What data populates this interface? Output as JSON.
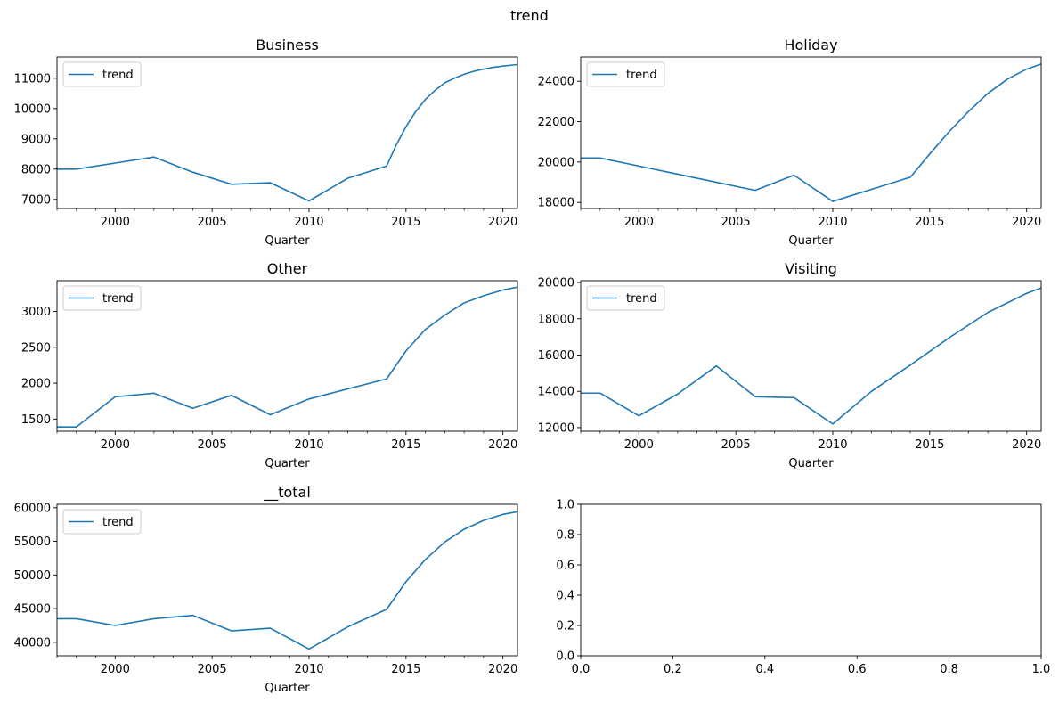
{
  "figure": {
    "suptitle": "trend"
  },
  "colors": {
    "line": "#1f77b4",
    "axes": "#000000",
    "legend_border": "#cccccc"
  },
  "chart_data": [
    {
      "type": "line",
      "title": "Business",
      "xlabel": "Quarter",
      "ylabel": "",
      "xlim": [
        1997,
        2020.75
      ],
      "ylim": [
        6700,
        11700
      ],
      "xticks": [
        2000,
        2005,
        2010,
        2015,
        2020
      ],
      "xtick_labels": [
        "2000",
        "2005",
        "2010",
        "2015",
        "2020"
      ],
      "yticks": [
        7000,
        8000,
        9000,
        10000,
        11000
      ],
      "ytick_labels": [
        "7000",
        "8000",
        "9000",
        "10000",
        "11000"
      ],
      "legend": {
        "position": "upper-left",
        "entries": [
          "trend"
        ]
      },
      "grid": false,
      "series": [
        {
          "name": "trend",
          "x": [
            1997,
            1998,
            2000,
            2002,
            2004,
            2006,
            2008,
            2010,
            2012,
            2014,
            2014.5,
            2015,
            2015.5,
            2016,
            2016.5,
            2017,
            2017.5,
            2018,
            2018.5,
            2019,
            2019.5,
            2020,
            2020.75
          ],
          "y": [
            8000,
            8000,
            8200,
            8400,
            7900,
            7500,
            7550,
            6950,
            7700,
            8100,
            8800,
            9400,
            9900,
            10300,
            10600,
            10850,
            11000,
            11130,
            11230,
            11300,
            11360,
            11400,
            11450
          ]
        }
      ]
    },
    {
      "type": "line",
      "title": "Holiday",
      "xlabel": "Quarter",
      "ylabel": "",
      "xlim": [
        1997,
        2020.75
      ],
      "ylim": [
        17700,
        25200
      ],
      "xticks": [
        2000,
        2005,
        2010,
        2015,
        2020
      ],
      "xtick_labels": [
        "2000",
        "2005",
        "2010",
        "2015",
        "2020"
      ],
      "yticks": [
        18000,
        20000,
        22000,
        24000
      ],
      "ytick_labels": [
        "18000",
        "20000",
        "22000",
        "24000"
      ],
      "legend": {
        "position": "upper-left",
        "entries": [
          "trend"
        ]
      },
      "grid": false,
      "series": [
        {
          "name": "trend",
          "x": [
            1997,
            1998,
            2000,
            2002,
            2004,
            2006,
            2008,
            2010,
            2012,
            2014,
            2015,
            2016,
            2017,
            2018,
            2019,
            2020,
            2020.75
          ],
          "y": [
            20200,
            20200,
            19800,
            19400,
            19000,
            18600,
            19350,
            18050,
            18650,
            19250,
            20400,
            21500,
            22500,
            23400,
            24100,
            24600,
            24850
          ]
        }
      ]
    },
    {
      "type": "line",
      "title": "Other",
      "xlabel": "Quarter",
      "ylabel": "",
      "xlim": [
        1997,
        2020.75
      ],
      "ylim": [
        1330,
        3430
      ],
      "xticks": [
        2000,
        2005,
        2010,
        2015,
        2020
      ],
      "xtick_labels": [
        "2000",
        "2005",
        "2010",
        "2015",
        "2020"
      ],
      "yticks": [
        1500,
        2000,
        2500,
        3000
      ],
      "ytick_labels": [
        "1500",
        "2000",
        "2500",
        "3000"
      ],
      "legend": {
        "position": "upper-left",
        "entries": [
          "trend"
        ]
      },
      "grid": false,
      "series": [
        {
          "name": "trend",
          "x": [
            1997,
            1998,
            2000,
            2002,
            2004,
            2006,
            2008,
            2010,
            2012,
            2014,
            2015,
            2016,
            2017,
            2018,
            2019,
            2020,
            2020.75
          ],
          "y": [
            1390,
            1390,
            1810,
            1860,
            1650,
            1830,
            1560,
            1780,
            1920,
            2060,
            2450,
            2750,
            2950,
            3120,
            3220,
            3300,
            3340
          ]
        }
      ]
    },
    {
      "type": "line",
      "title": "Visiting",
      "xlabel": "Quarter",
      "ylabel": "",
      "xlim": [
        1997,
        2020.75
      ],
      "ylim": [
        11800,
        20100
      ],
      "xticks": [
        2000,
        2005,
        2010,
        2015,
        2020
      ],
      "xtick_labels": [
        "2000",
        "2005",
        "2010",
        "2015",
        "2020"
      ],
      "yticks": [
        12000,
        14000,
        16000,
        18000,
        20000
      ],
      "ytick_labels": [
        "12000",
        "14000",
        "16000",
        "18000",
        "20000"
      ],
      "legend": {
        "position": "upper-left",
        "entries": [
          "trend"
        ]
      },
      "grid": false,
      "series": [
        {
          "name": "trend",
          "x": [
            1997,
            1998,
            2000,
            2002,
            2004,
            2006,
            2008,
            2010,
            2012,
            2014,
            2016,
            2018,
            2020,
            2020.75
          ],
          "y": [
            13900,
            13900,
            12650,
            13850,
            15400,
            13700,
            13650,
            12200,
            14000,
            15450,
            16950,
            18350,
            19400,
            19700
          ]
        }
      ]
    },
    {
      "type": "line",
      "title": "__total",
      "xlabel": "Quarter",
      "ylabel": "",
      "xlim": [
        1997,
        2020.75
      ],
      "ylim": [
        38000,
        60500
      ],
      "xticks": [
        2000,
        2005,
        2010,
        2015,
        2020
      ],
      "xtick_labels": [
        "2000",
        "2005",
        "2010",
        "2015",
        "2020"
      ],
      "yticks": [
        40000,
        45000,
        50000,
        55000,
        60000
      ],
      "ytick_labels": [
        "40000",
        "45000",
        "50000",
        "55000",
        "60000"
      ],
      "legend": {
        "position": "upper-left",
        "entries": [
          "trend"
        ]
      },
      "grid": false,
      "series": [
        {
          "name": "trend",
          "x": [
            1997,
            1998,
            2000,
            2002,
            2004,
            2006,
            2008,
            2010,
            2012,
            2014,
            2015,
            2016,
            2017,
            2018,
            2019,
            2020,
            2020.75
          ],
          "y": [
            43500,
            43500,
            42500,
            43500,
            44000,
            41700,
            42100,
            39000,
            42300,
            44900,
            49000,
            52300,
            54900,
            56800,
            58100,
            59000,
            59400
          ]
        }
      ]
    },
    {
      "type": "line",
      "title": "",
      "xlabel": "",
      "ylabel": "",
      "xlim": [
        0,
        1
      ],
      "ylim": [
        0,
        1
      ],
      "xticks": [
        0,
        0.2,
        0.4,
        0.6,
        0.8,
        1.0
      ],
      "xtick_labels": [
        "0.0",
        "0.2",
        "0.4",
        "0.6",
        "0.8",
        "1.0"
      ],
      "yticks": [
        0,
        0.2,
        0.4,
        0.6,
        0.8,
        1.0
      ],
      "ytick_labels": [
        "0.0",
        "0.2",
        "0.4",
        "0.6",
        "0.8",
        "1.0"
      ],
      "legend": null,
      "grid": false,
      "series": []
    }
  ]
}
